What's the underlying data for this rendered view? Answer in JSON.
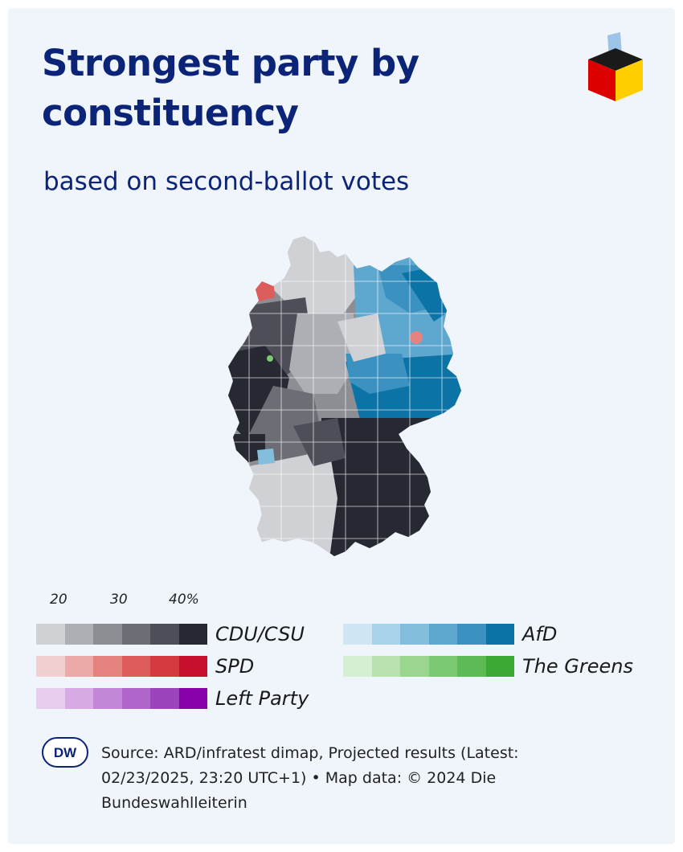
{
  "header": {
    "title": "Strongest party by constituency",
    "subtitle": "based on second-ballot votes"
  },
  "logo": {
    "icon": "ballot-box-icon",
    "colors": [
      "#1a1a1a",
      "#dd0000",
      "#ffce00",
      "#9dc3e6"
    ]
  },
  "map": {
    "region": "Germany",
    "description_regions": [
      {
        "name": "East",
        "party": "AfD"
      },
      {
        "name": "South",
        "party": "CDU/CSU"
      },
      {
        "name": "North",
        "party": "CDU/CSU"
      },
      {
        "name": "West",
        "party": "CDU/CSU"
      }
    ]
  },
  "legend": {
    "ticks": [
      "20",
      "30",
      "40%"
    ],
    "parties": [
      {
        "label": "CDU/CSU",
        "colors": [
          "#d0d1d5",
          "#aeafb4",
          "#8d8e94",
          "#6d6e75",
          "#4d4e57",
          "#262832"
        ]
      },
      {
        "label": "AfD",
        "colors": [
          "#cfe6f5",
          "#a9d3ea",
          "#84bedd",
          "#5ea8d0",
          "#3b91c0",
          "#0b73a6"
        ]
      },
      {
        "label": "SPD",
        "colors": [
          "#f2d0cf",
          "#eba9a7",
          "#e48280",
          "#dd5c5c",
          "#d43a40",
          "#c8102e"
        ]
      },
      {
        "label": "The Greens",
        "colors": [
          "#d5efd2",
          "#b8e3b1",
          "#9bd690",
          "#7cc873",
          "#5dbb55",
          "#3aaa35"
        ]
      },
      {
        "label": "Left Party",
        "colors": [
          "#e9cdf0",
          "#d7aae4",
          "#c487d8",
          "#b065cb",
          "#9c43be",
          "#8700aa"
        ]
      }
    ]
  },
  "footer": {
    "logo_text": "DW",
    "source_line1": "Source: ARD/infratest dimap, Projected results (Latest:",
    "source_line2": "02/23/2025, 23:20 UTC+1) • Map data: © 2024 Die",
    "source_line3": "Bundeswahlleiterin"
  }
}
